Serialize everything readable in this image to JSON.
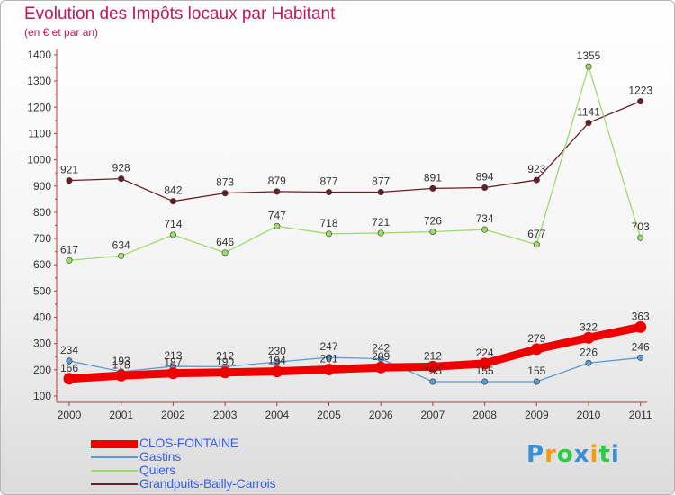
{
  "chart_data": {
    "type": "line",
    "title": "Evolution des Impôts locaux par Habitant",
    "subtitle": "(en € et par an)",
    "x": [
      "2000",
      "2001",
      "2002",
      "2003",
      "2004",
      "2005",
      "2006",
      "2007",
      "2008",
      "2009",
      "2010",
      "2011"
    ],
    "ylim": [
      100,
      1400
    ],
    "yticks": [
      100,
      200,
      300,
      400,
      500,
      600,
      700,
      800,
      900,
      1000,
      1100,
      1200,
      1300,
      1400
    ],
    "grid": false,
    "legend_position": "bottom-left",
    "series": [
      {
        "name": "CLOS-FONTAINE",
        "color": "#ee0000",
        "values": [
          166,
          178,
          187,
          190,
          194,
          201,
          209,
          212,
          224,
          279,
          322,
          363
        ]
      },
      {
        "name": "Gastins",
        "color": "#5a9bd5",
        "values": [
          234,
          193,
          213,
          212,
          230,
          247,
          242,
          155,
          155,
          155,
          226,
          246
        ]
      },
      {
        "name": "Quiers",
        "color": "#9bdc6a",
        "values": [
          617,
          634,
          714,
          646,
          747,
          718,
          721,
          726,
          734,
          677,
          1355,
          703
        ]
      },
      {
        "name": "Grandpuits-Bailly-Carrois",
        "color": "#6b1d2a",
        "values": [
          921,
          928,
          842,
          873,
          879,
          877,
          877,
          891,
          894,
          923,
          1141,
          1223
        ]
      }
    ]
  },
  "logo": {
    "text": "Proxiti",
    "letters": [
      "P",
      "r",
      "o",
      "x",
      "i",
      "t",
      "i"
    ],
    "colors": [
      "#3b8fd6",
      "#f39c12",
      "#2ecc40",
      "#3b8fd6",
      "#f39c12",
      "#2ecc40",
      "#3b8fd6"
    ]
  }
}
